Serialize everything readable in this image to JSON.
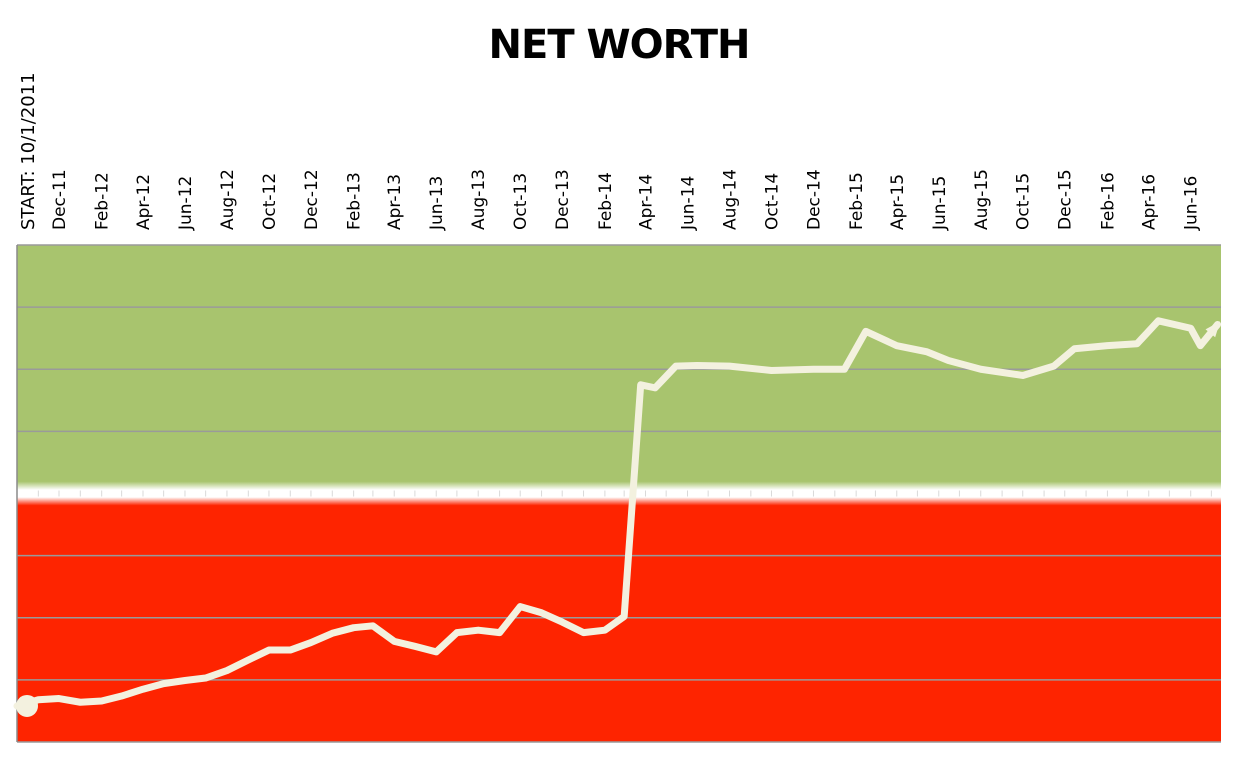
{
  "chart_data": {
    "type": "line",
    "title": "NET WORTH",
    "start_label": "START: 10/1/2011",
    "tick_labels": [
      "Dec-11",
      "Feb-12",
      "Apr-12",
      "Jun-12",
      "Aug-12",
      "Oct-12",
      "Dec-12",
      "Feb-13",
      "Apr-13",
      "Jun-13",
      "Aug-13",
      "Oct-13",
      "Dec-13",
      "Feb-14",
      "Apr-14",
      "Jun-14",
      "Aug-14",
      "Oct-14",
      "Dec-14",
      "Feb-15",
      "Apr-15",
      "Jun-15",
      "Aug-15",
      "Oct-15",
      "Dec-15",
      "Feb-16",
      "Apr-16",
      "Jun-16"
    ],
    "xlim": [
      "2011-10-01",
      "2016-07-15"
    ],
    "ylim": [
      -4,
      4
    ],
    "y_zero_boundary": 0,
    "y_values_note": "",
    "grid": true,
    "yaxis_labels": false,
    "colors": {
      "positive_region": "#a8c46e",
      "negative_region": "#fe2400",
      "line": "#f3f1df",
      "grid": "#9a9a9a"
    },
    "series": [
      {
        "name": "",
        "points": [
          [
            "2011-10-01",
            -3.42
          ],
          [
            "2011-11-01",
            -3.32
          ],
          [
            "2011-12-01",
            -3.3
          ],
          [
            "2012-01-01",
            -3.36
          ],
          [
            "2012-02-01",
            -3.34
          ],
          [
            "2012-03-01",
            -3.26
          ],
          [
            "2012-04-01",
            -3.15
          ],
          [
            "2012-05-01",
            -3.06
          ],
          [
            "2012-06-01",
            -3.01
          ],
          [
            "2012-07-01",
            -2.97
          ],
          [
            "2012-08-01",
            -2.85
          ],
          [
            "2012-09-01",
            -2.68
          ],
          [
            "2012-10-01",
            -2.52
          ],
          [
            "2012-11-01",
            -2.52
          ],
          [
            "2012-12-01",
            -2.4
          ],
          [
            "2013-01-01",
            -2.25
          ],
          [
            "2013-02-01",
            -2.16
          ],
          [
            "2013-03-01",
            -2.13
          ],
          [
            "2013-04-01",
            -2.38
          ],
          [
            "2013-05-01",
            -2.46
          ],
          [
            "2013-06-01",
            -2.55
          ],
          [
            "2013-07-01",
            -2.24
          ],
          [
            "2013-08-01",
            -2.2
          ],
          [
            "2013-09-01",
            -2.24
          ],
          [
            "2013-10-01",
            -1.82
          ],
          [
            "2013-11-01",
            -1.92
          ],
          [
            "2013-12-01",
            -2.07
          ],
          [
            "2014-01-01",
            -2.24
          ],
          [
            "2014-02-01",
            -2.2
          ],
          [
            "2014-03-01",
            -1.98
          ],
          [
            "2014-03-25",
            1.75
          ],
          [
            "2014-04-15",
            1.7
          ],
          [
            "2014-05-15",
            2.05
          ],
          [
            "2014-06-15",
            2.06
          ],
          [
            "2014-08-01",
            2.05
          ],
          [
            "2014-10-01",
            1.98
          ],
          [
            "2014-12-01",
            2.0
          ],
          [
            "2015-01-15",
            2.0
          ],
          [
            "2015-02-15",
            2.61
          ],
          [
            "2015-04-01",
            2.38
          ],
          [
            "2015-05-15",
            2.28
          ],
          [
            "2015-06-15",
            2.14
          ],
          [
            "2015-08-01",
            2.0
          ],
          [
            "2015-10-01",
            1.9
          ],
          [
            "2015-11-15",
            2.05
          ],
          [
            "2015-12-15",
            2.33
          ],
          [
            "2016-02-01",
            2.38
          ],
          [
            "2016-03-15",
            2.41
          ],
          [
            "2016-04-15",
            2.78
          ],
          [
            "2016-06-01",
            2.66
          ],
          [
            "2016-06-15",
            2.38
          ],
          [
            "2016-07-10",
            2.72
          ]
        ]
      }
    ]
  }
}
